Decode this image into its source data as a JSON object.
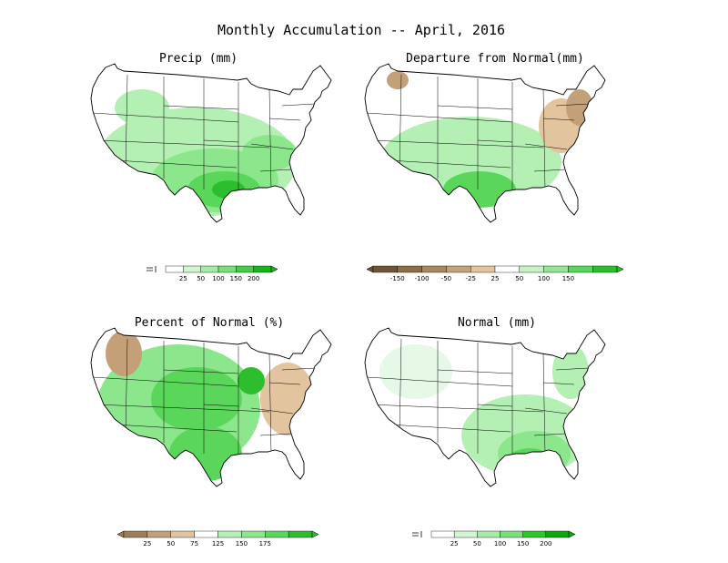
{
  "title": "Monthly Accumulation -- April, 2016",
  "colors": {
    "green_1": "#e6f9e6",
    "green_2": "#b4efb4",
    "green_3": "#8ce68c",
    "green_4": "#5ad75a",
    "green_5": "#2dbe2d",
    "green_6": "#12a012",
    "brown_1": "#e2c49e",
    "brown_2": "#c4a078",
    "brown_3": "#a07e55",
    "brown_4": "#6e5535"
  },
  "panels": [
    {
      "id": "precip",
      "title": "Precip (mm)",
      "legend": {
        "left_marker": "dashes",
        "colors": [
          "#ffffff",
          "#d2f5d2",
          "#a5eba5",
          "#78e078",
          "#46cd46",
          "#19b419"
        ],
        "ticks": [
          "25",
          "50",
          "100",
          "150",
          "200"
        ]
      }
    },
    {
      "id": "departure",
      "title": "Departure from Normal(mm)",
      "legend": {
        "left_marker": "arrow",
        "colors": [
          "#6e5535",
          "#8c6e48",
          "#a88860",
          "#c4a27a",
          "#e2c49e",
          "#ffffff",
          "#c8f0c8",
          "#96e496",
          "#5ad75a",
          "#2dbe2d"
        ],
        "ticks": [
          "-150",
          "-100",
          "-50",
          "-25",
          "25",
          "50",
          "100",
          "150"
        ]
      }
    },
    {
      "id": "percent",
      "title": "Percent of Normal (%)",
      "legend": {
        "left_marker": "arrow",
        "colors": [
          "#a07e55",
          "#c4a078",
          "#e2c49e",
          "#ffffff",
          "#b4efb4",
          "#8ce68c",
          "#5ad75a",
          "#2dbe2d"
        ],
        "ticks": [
          "25",
          "50",
          "75",
          "125",
          "150",
          "175"
        ]
      }
    },
    {
      "id": "normal",
      "title": "Normal (mm)",
      "legend": {
        "left_marker": "dashes",
        "colors": [
          "#ffffff",
          "#d2f5d2",
          "#a5eba5",
          "#78e078",
          "#28c828",
          "#0aaa0a"
        ],
        "ticks": [
          "25",
          "50",
          "100",
          "150",
          "200"
        ]
      }
    }
  ]
}
